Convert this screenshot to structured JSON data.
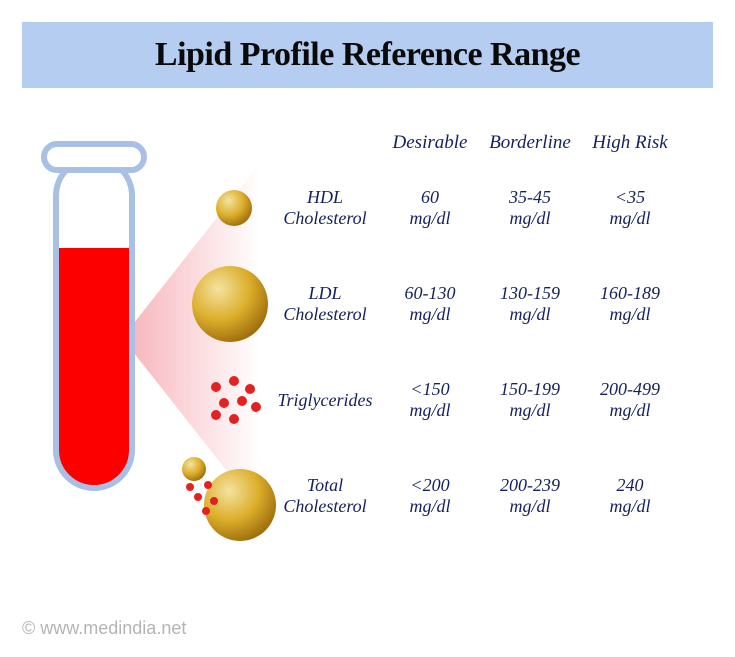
{
  "title": "Lipid Profile Reference Range",
  "title_bar_bg": "#b5cdf0",
  "title_color": "#0a0a0a",
  "title_fontsize": 34,
  "text_color": "#14215c",
  "header_fontsize": 19,
  "label_fontsize": 18,
  "value_fontsize": 18,
  "unit": "mg/dl",
  "columns": [
    "Desirable",
    "Borderline",
    "High Risk"
  ],
  "rows": [
    {
      "label": "HDL Cholesterol",
      "values": [
        "60",
        "35-45",
        "<35"
      ]
    },
    {
      "label": "LDL Cholesterol",
      "values": [
        "60-130",
        "130-159",
        "160-189"
      ]
    },
    {
      "label": "Triglycerides",
      "values": [
        "<150",
        "150-199",
        "200-499"
      ]
    },
    {
      "label": "Total Cholesterol",
      "values": [
        "<200",
        "200-239",
        "240"
      ]
    }
  ],
  "tube": {
    "outline_color": "#a8bfe6",
    "outline_width": 6,
    "fill_color": "#fc0000",
    "inner_bg": "#ffffff"
  },
  "beam_color_start": "#f7b6bd",
  "beam_color_end": "#ffffff",
  "sphere_light": "#f4e3a0",
  "sphere_mid": "#dcae2a",
  "sphere_dark": "#9c6b0c",
  "dot_color": "#e22222",
  "copyright_text": "© www.medindia.net",
  "copyright_color": "#b4b4b4",
  "copyright_fontsize": 18
}
